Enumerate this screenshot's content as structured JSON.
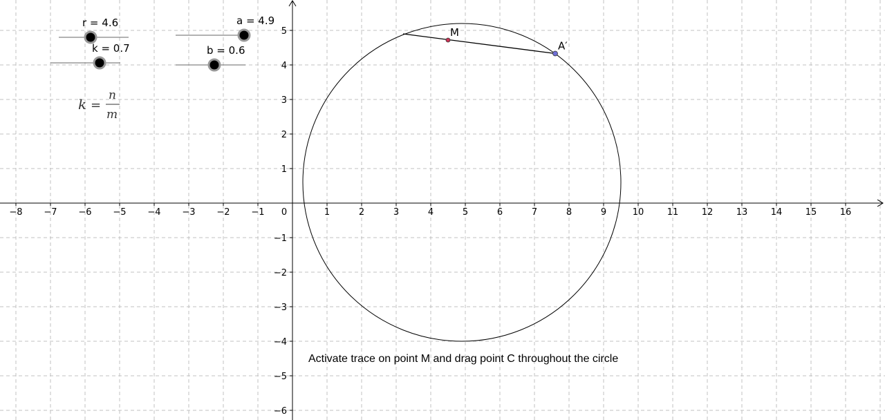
{
  "axes": {
    "x_ticks": [
      "−8",
      "−7",
      "−6",
      "−5",
      "−4",
      "−3",
      "−2",
      "−1",
      "0",
      "1",
      "2",
      "3",
      "4",
      "5",
      "6",
      "7",
      "8",
      "9",
      "10",
      "11",
      "12",
      "13",
      "14",
      "15",
      "16"
    ],
    "y_ticks": [
      "5",
      "4",
      "3",
      "2",
      "1",
      "−1",
      "−2",
      "−3",
      "−4",
      "−5",
      "−6"
    ],
    "x_range": [
      -8,
      16
    ],
    "y_range": [
      -6,
      5
    ],
    "grid": true
  },
  "sliders": {
    "r": {
      "label": "r = 4.6",
      "value": 4.6
    },
    "k": {
      "label": "k = 0.7",
      "value": 0.7
    },
    "a": {
      "label": "a = 4.9",
      "value": 4.9
    },
    "b": {
      "label": "b = 0.6",
      "value": 0.6
    }
  },
  "formula": {
    "lhs": "k",
    "eq": "=",
    "num": "n",
    "den": "m"
  },
  "points": {
    "M": {
      "label": "M",
      "x": 4.5,
      "y": 4.72,
      "color": "#cc3355"
    },
    "A_prime": {
      "label": "A′",
      "x": 7.6,
      "y": 4.33,
      "color": "#7070d6"
    },
    "C": {
      "x": 3.2,
      "y": 4.9
    }
  },
  "circle": {
    "center_x": 4.9,
    "center_y": 0.6,
    "radius": 4.6
  },
  "instruction": "Activate trace on point M and drag point C throughout the circle"
}
